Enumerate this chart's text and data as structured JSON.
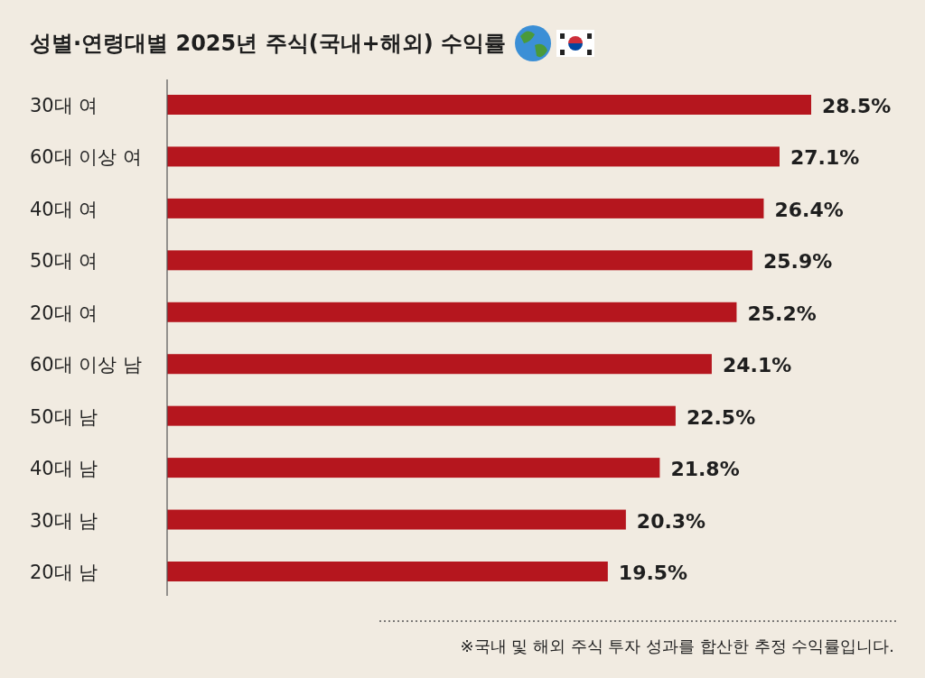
{
  "chart_data": {
    "type": "bar",
    "orientation": "horizontal",
    "title": "성별·연령대별 2025년 주식(국내+해외) 수익률",
    "categories": [
      "30대 여",
      "60대 이상 여",
      "40대 여",
      "50대 여",
      "20대 여",
      "60대 이상 남",
      "50대 남",
      "40대 남",
      "30대 남",
      "20대 남"
    ],
    "values": [
      28.5,
      27.1,
      26.4,
      25.9,
      25.2,
      24.1,
      22.5,
      21.8,
      20.3,
      19.5
    ],
    "value_labels": [
      "28.5%",
      "27.1%",
      "26.4%",
      "25.9%",
      "25.2%",
      "24.1%",
      "22.5%",
      "21.8%",
      "20.3%",
      "19.5%"
    ],
    "color": "#b5161e",
    "annotations": [
      "※국내 및 해외 주식 투자 성과를 합산한 추정 수익률입니다."
    ]
  }
}
